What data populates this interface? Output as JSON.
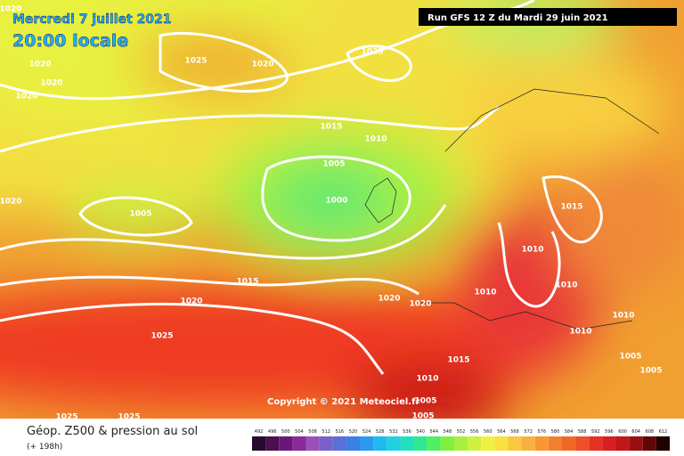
{
  "header": {
    "date": "Mercredi 7 juillet 2021",
    "time": "20:00 locale",
    "run": "Run GFS 12 Z du Mardi 29 juin 2021"
  },
  "copyright": "Copyright © 2021 Meteociel.fr",
  "footer": {
    "title": "Géop. Z500 & pression au sol",
    "lead": "(+ 198h)"
  },
  "isobar_labels": [
    "1020",
    "1020",
    "1025",
    "1020",
    "1025",
    "1020",
    "1020",
    "1015",
    "1010",
    "1005",
    "1020",
    "1005",
    "1000",
    "1015",
    "1010",
    "1015",
    "1010",
    "1010",
    "1020",
    "1020",
    "1020",
    "1010",
    "1010",
    "1025",
    "1015",
    "1005",
    "1005",
    "1010",
    "1005",
    "1005",
    "1025",
    "1025"
  ],
  "legend": {
    "labels": [
      "492",
      "496",
      "500",
      "504",
      "508",
      "512",
      "516",
      "520",
      "524",
      "528",
      "532",
      "536",
      "540",
      "544",
      "548",
      "552",
      "556",
      "560",
      "564",
      "568",
      "572",
      "576",
      "580",
      "584",
      "588",
      "592",
      "596",
      "600",
      "604",
      "608",
      "612"
    ],
    "colors": [
      "#2a0a30",
      "#4a1050",
      "#6a1878",
      "#8a2a9a",
      "#9a50b8",
      "#7a60c8",
      "#5a70d8",
      "#3a80e8",
      "#2a9af0",
      "#20b8f0",
      "#20d0e0",
      "#20e0c0",
      "#30e890",
      "#50f060",
      "#80f040",
      "#a8f040",
      "#d0f040",
      "#f0f040",
      "#f8e040",
      "#f8c840",
      "#f8b040",
      "#f89830",
      "#f08030",
      "#f06828",
      "#f05028",
      "#e83020",
      "#d82020",
      "#c01818",
      "#981010",
      "#600808",
      "#200000"
    ]
  }
}
